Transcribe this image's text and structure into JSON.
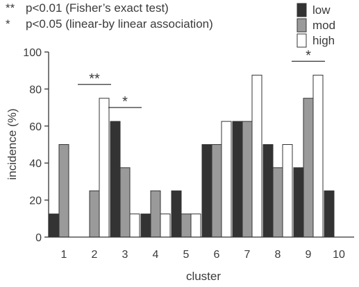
{
  "notes": [
    {
      "marker": "**",
      "text": "p<0.01 (Fisher’s exact test)"
    },
    {
      "marker": "*",
      "text": "p<0.05 (linear-by linear association)"
    }
  ],
  "chart_data": {
    "type": "bar",
    "xlabel": "cluster",
    "ylabel": "incidence (%)",
    "ylim": [
      0,
      100
    ],
    "yticks": [
      0,
      20,
      40,
      60,
      80,
      100
    ],
    "grid": false,
    "legend_position": "top-right",
    "categories": [
      "1",
      "2",
      "3",
      "4",
      "5",
      "6",
      "7",
      "8",
      "9",
      "10"
    ],
    "series": [
      {
        "name": "low",
        "color": "#333333",
        "values": [
          12.5,
          0,
          62.5,
          12.5,
          25,
          50,
          62.5,
          50,
          37.5,
          25
        ]
      },
      {
        "name": "mod",
        "color": "#9a9a9a",
        "values": [
          50,
          25,
          37.5,
          25,
          12.5,
          50,
          62.5,
          37.5,
          75,
          0
        ]
      },
      {
        "name": "high",
        "color": "#ffffff",
        "values": [
          0,
          75,
          12.5,
          12.5,
          12.5,
          62.5,
          87.5,
          50,
          87.5,
          0
        ]
      }
    ],
    "significance": [
      {
        "category": "2",
        "marker": "**"
      },
      {
        "category": "3",
        "marker": "*"
      },
      {
        "category": "9",
        "marker": "*"
      }
    ]
  }
}
